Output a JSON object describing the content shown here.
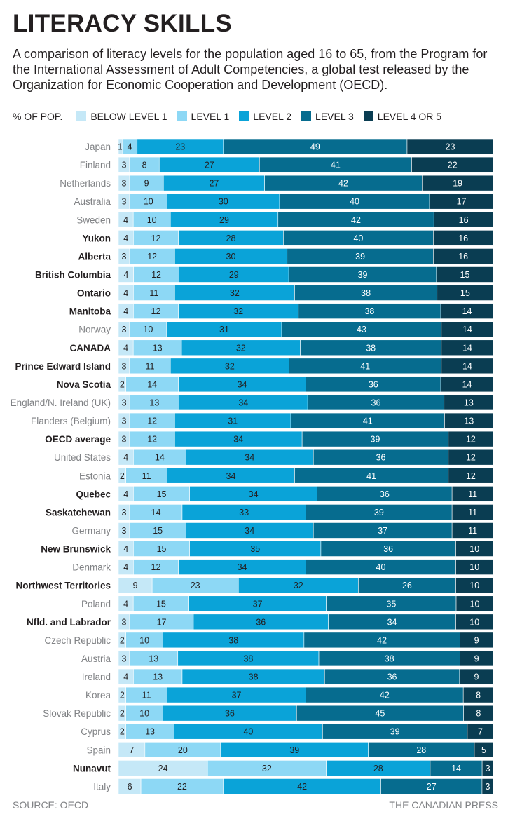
{
  "header": {
    "title": "LITERACY SKILLS",
    "subtitle": "A comparison of literacy levels for the population aged 16 to 65, from the Program for the International Assessment of Adult Competencies, a global test released by the Organization for Economic Cooperation and Development (OECD)."
  },
  "legend": {
    "label": "% OF POP.",
    "items": [
      "BELOW LEVEL 1",
      "LEVEL 1",
      "LEVEL 2",
      "LEVEL 3",
      "LEVEL 4 OR 5"
    ]
  },
  "colors": {
    "below_level_1": "#c5e8f7",
    "level_1": "#8dd8f5",
    "level_2": "#0aa3d8",
    "level_3": "#066c8f",
    "level_4_5": "#0a3d52",
    "label_canadian": "#231f20",
    "label_other": "#808285"
  },
  "footer": {
    "source": "SOURCE: OECD",
    "credit": "THE CANADIAN PRESS"
  },
  "chart_data": {
    "type": "bar",
    "orientation": "horizontal",
    "stacked": true,
    "unit": "% of population",
    "series_names": [
      "BELOW LEVEL 1",
      "LEVEL 1",
      "LEVEL 2",
      "LEVEL 3",
      "LEVEL 4 OR 5"
    ],
    "rows": [
      {
        "label": "Japan",
        "bold": false,
        "values": [
          1,
          4,
          23,
          49,
          23
        ]
      },
      {
        "label": "Finland",
        "bold": false,
        "values": [
          3,
          8,
          27,
          41,
          22
        ]
      },
      {
        "label": "Netherlands",
        "bold": false,
        "values": [
          3,
          9,
          27,
          42,
          19
        ]
      },
      {
        "label": "Australia",
        "bold": false,
        "values": [
          3,
          10,
          30,
          40,
          17
        ]
      },
      {
        "label": "Sweden",
        "bold": false,
        "values": [
          4,
          10,
          29,
          42,
          16
        ]
      },
      {
        "label": "Yukon",
        "bold": true,
        "values": [
          4,
          12,
          28,
          40,
          16
        ]
      },
      {
        "label": "Alberta",
        "bold": true,
        "values": [
          3,
          12,
          30,
          39,
          16
        ]
      },
      {
        "label": "British Columbia",
        "bold": true,
        "values": [
          4,
          12,
          29,
          39,
          15
        ]
      },
      {
        "label": "Ontario",
        "bold": true,
        "values": [
          4,
          11,
          32,
          38,
          15
        ]
      },
      {
        "label": "Manitoba",
        "bold": true,
        "values": [
          4,
          12,
          32,
          38,
          14
        ]
      },
      {
        "label": "Norway",
        "bold": false,
        "values": [
          3,
          10,
          31,
          43,
          14
        ]
      },
      {
        "label": "CANADA",
        "bold": true,
        "values": [
          4,
          13,
          32,
          38,
          14
        ]
      },
      {
        "label": "Prince Edward Island",
        "bold": true,
        "values": [
          3,
          11,
          32,
          41,
          14
        ]
      },
      {
        "label": "Nova Scotia",
        "bold": true,
        "values": [
          2,
          14,
          34,
          36,
          14
        ]
      },
      {
        "label": "England/N. Ireland (UK)",
        "bold": false,
        "values": [
          3,
          13,
          34,
          36,
          13
        ]
      },
      {
        "label": "Flanders (Belgium)",
        "bold": false,
        "values": [
          3,
          12,
          31,
          41,
          13
        ]
      },
      {
        "label": "OECD average",
        "bold": true,
        "values": [
          3,
          12,
          34,
          39,
          12
        ]
      },
      {
        "label": "United States",
        "bold": false,
        "values": [
          4,
          14,
          34,
          36,
          12
        ]
      },
      {
        "label": "Estonia",
        "bold": false,
        "values": [
          2,
          11,
          34,
          41,
          12
        ]
      },
      {
        "label": "Quebec",
        "bold": true,
        "values": [
          4,
          15,
          34,
          36,
          11
        ]
      },
      {
        "label": "Saskatchewan",
        "bold": true,
        "values": [
          3,
          14,
          33,
          39,
          11
        ]
      },
      {
        "label": "Germany",
        "bold": false,
        "values": [
          3,
          15,
          34,
          37,
          11
        ]
      },
      {
        "label": "New Brunswick",
        "bold": true,
        "values": [
          4,
          15,
          35,
          36,
          10
        ]
      },
      {
        "label": "Denmark",
        "bold": false,
        "values": [
          4,
          12,
          34,
          40,
          10
        ]
      },
      {
        "label": "Northwest Territories",
        "bold": true,
        "values": [
          9,
          23,
          32,
          26,
          10
        ]
      },
      {
        "label": "Poland",
        "bold": false,
        "values": [
          4,
          15,
          37,
          35,
          10
        ]
      },
      {
        "label": "Nfld. and Labrador",
        "bold": true,
        "values": [
          3,
          17,
          36,
          34,
          10
        ]
      },
      {
        "label": "Czech Republic",
        "bold": false,
        "values": [
          2,
          10,
          38,
          42,
          9
        ]
      },
      {
        "label": "Austria",
        "bold": false,
        "values": [
          3,
          13,
          38,
          38,
          9
        ]
      },
      {
        "label": "Ireland",
        "bold": false,
        "values": [
          4,
          13,
          38,
          36,
          9
        ]
      },
      {
        "label": "Korea",
        "bold": false,
        "values": [
          2,
          11,
          37,
          42,
          8
        ]
      },
      {
        "label": "Slovak Republic",
        "bold": false,
        "values": [
          2,
          10,
          36,
          45,
          8
        ]
      },
      {
        "label": "Cyprus",
        "bold": false,
        "values": [
          2,
          13,
          40,
          39,
          7
        ]
      },
      {
        "label": "Spain",
        "bold": false,
        "values": [
          7,
          20,
          39,
          28,
          5
        ]
      },
      {
        "label": "Nunavut",
        "bold": true,
        "values": [
          24,
          32,
          28,
          14,
          3
        ]
      },
      {
        "label": "Italy",
        "bold": false,
        "values": [
          6,
          22,
          42,
          27,
          3
        ]
      }
    ]
  }
}
